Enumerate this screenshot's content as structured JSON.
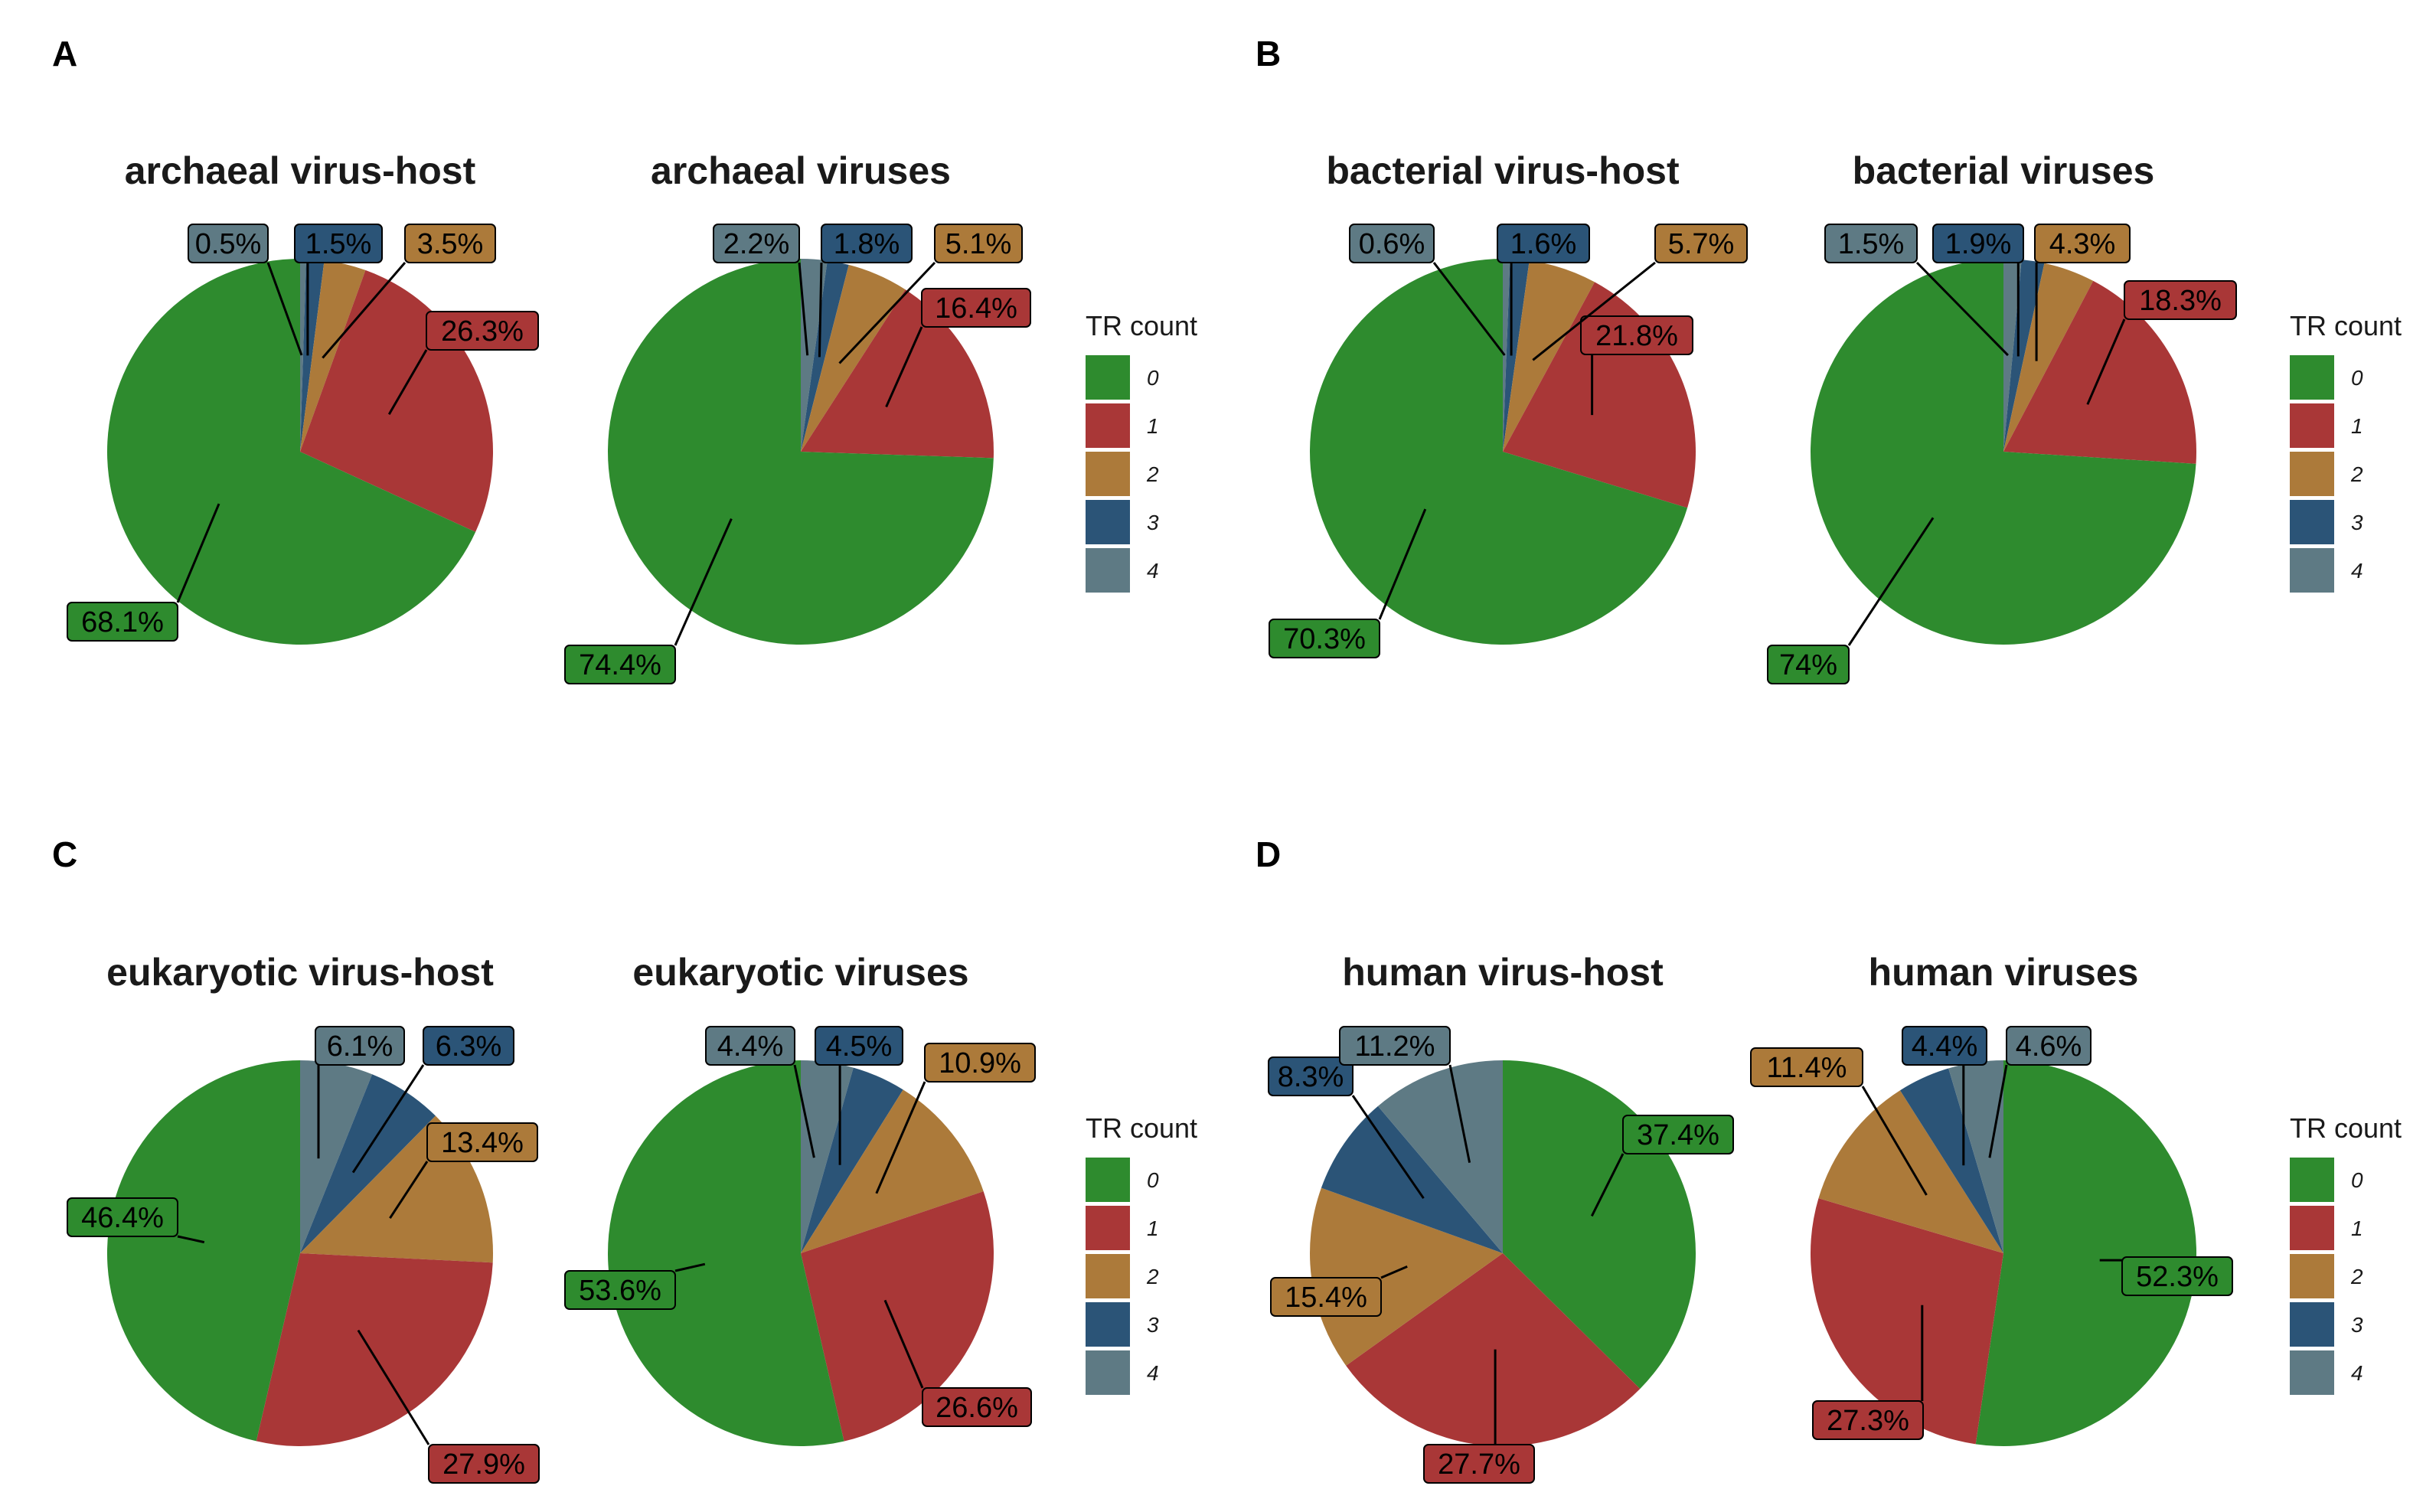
{
  "colors": {
    "0": "#2e8b2e",
    "1": "#a93737",
    "2": "#ac7a3a",
    "3": "#2b5477",
    "4": "#5e7a84"
  },
  "legend_title": "TR count",
  "legend_items": [
    "0",
    "1",
    "2",
    "3",
    "4"
  ],
  "chart_data": [
    {
      "panel": "A",
      "type": "pie",
      "title": "archaeal virus-host",
      "categories": [
        "0",
        "1",
        "2",
        "3",
        "4"
      ],
      "values": [
        68.1,
        26.3,
        3.5,
        1.5,
        0.5
      ],
      "labels": [
        "68.1%",
        "26.3%",
        "3.5%",
        "1.5%",
        "0.5%"
      ]
    },
    {
      "panel": "A",
      "type": "pie",
      "title": "archaeal viruses",
      "categories": [
        "0",
        "1",
        "2",
        "3",
        "4"
      ],
      "values": [
        74.4,
        16.4,
        5.1,
        1.8,
        2.2
      ],
      "labels": [
        "74.4%",
        "16.4%",
        "5.1%",
        "1.8%",
        "2.2%"
      ]
    },
    {
      "panel": "B",
      "type": "pie",
      "title": "bacterial virus-host",
      "categories": [
        "0",
        "1",
        "2",
        "3",
        "4"
      ],
      "values": [
        70.3,
        21.8,
        5.7,
        1.6,
        0.6
      ],
      "labels": [
        "70.3%",
        "21.8%",
        "5.7%",
        "1.6%",
        "0.6%"
      ]
    },
    {
      "panel": "B",
      "type": "pie",
      "title": "bacterial viruses",
      "categories": [
        "0",
        "1",
        "2",
        "3",
        "4"
      ],
      "values": [
        74,
        18.3,
        4.3,
        1.9,
        1.5
      ],
      "labels": [
        "74%",
        "18.3%",
        "4.3%",
        "1.9%",
        "1.5%"
      ]
    },
    {
      "panel": "C",
      "type": "pie",
      "title": "eukaryotic virus-host",
      "categories": [
        "0",
        "1",
        "2",
        "3",
        "4"
      ],
      "values": [
        46.4,
        27.9,
        13.4,
        6.3,
        6.1
      ],
      "labels": [
        "46.4%",
        "27.9%",
        "13.4%",
        "6.3%",
        "6.1%"
      ]
    },
    {
      "panel": "C",
      "type": "pie",
      "title": "eukaryotic viruses",
      "categories": [
        "0",
        "1",
        "2",
        "3",
        "4"
      ],
      "values": [
        53.6,
        26.6,
        10.9,
        4.5,
        4.4
      ],
      "labels": [
        "53.6%",
        "26.6%",
        "10.9%",
        "4.5%",
        "4.4%"
      ]
    },
    {
      "panel": "D",
      "type": "pie",
      "title": "human virus-host",
      "categories": [
        "0",
        "1",
        "2",
        "3",
        "4"
      ],
      "values": [
        37.4,
        27.7,
        15.4,
        8.3,
        11.2
      ],
      "labels": [
        "37.4%",
        "27.7%",
        "15.4%",
        "8.3%",
        "11.2%"
      ]
    },
    {
      "panel": "D",
      "type": "pie",
      "title": "human viruses",
      "categories": [
        "0",
        "1",
        "2",
        "3",
        "4"
      ],
      "values": [
        52.3,
        27.3,
        11.4,
        4.4,
        4.6
      ],
      "labels": [
        "52.3%",
        "27.3%",
        "11.4%",
        "4.4%",
        "4.6%"
      ]
    }
  ]
}
